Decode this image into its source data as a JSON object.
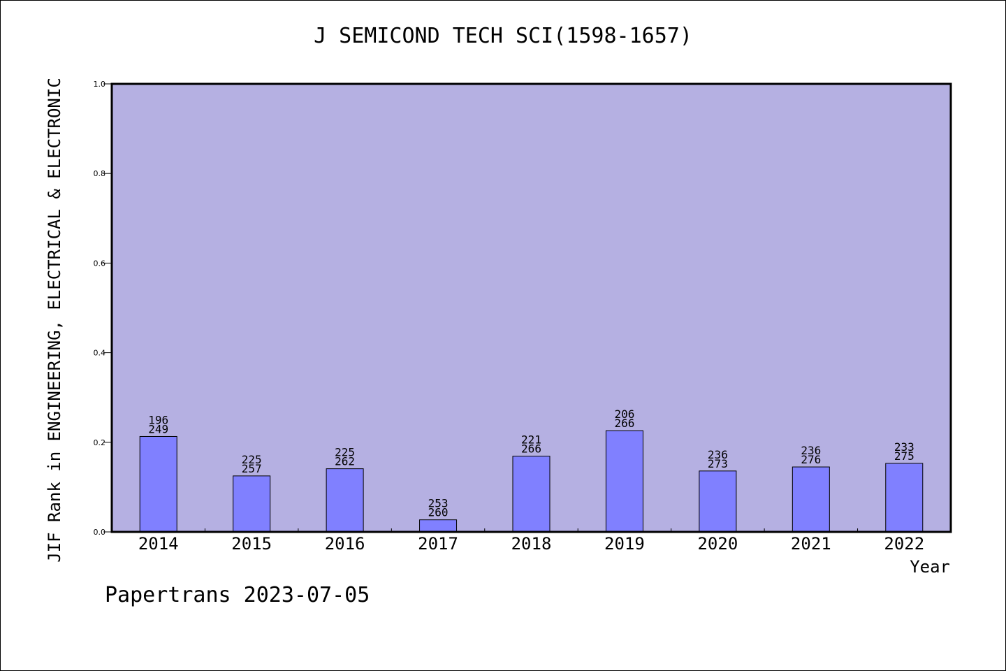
{
  "chart_data": {
    "type": "bar",
    "title": "J SEMICOND TECH SCI(1598-1657)",
    "xlabel": "Year",
    "ylabel": "JIF Rank in ENGINEERING, ELECTRICAL & ELECTRONIC",
    "ylim": [
      0,
      1.0
    ],
    "yticks": [
      "0.0",
      "0.2",
      "0.4",
      "0.6",
      "0.8",
      "1.0"
    ],
    "categories": [
      "2014",
      "2015",
      "2016",
      "2017",
      "2018",
      "2019",
      "2020",
      "2021",
      "2022"
    ],
    "values": [
      0.213,
      0.125,
      0.141,
      0.027,
      0.169,
      0.226,
      0.136,
      0.145,
      0.153
    ],
    "labels": [
      [
        "196",
        "249"
      ],
      [
        "225",
        "257"
      ],
      [
        "225",
        "262"
      ],
      [
        "253",
        "260"
      ],
      [
        "221",
        "266"
      ],
      [
        "206",
        "266"
      ],
      [
        "236",
        "273"
      ],
      [
        "236",
        "276"
      ],
      [
        "233",
        "275"
      ]
    ],
    "plot_background": "#b5b0e2",
    "bar_color": "#8080ff",
    "grid": false
  },
  "footer": "Papertrans 2023-07-05"
}
